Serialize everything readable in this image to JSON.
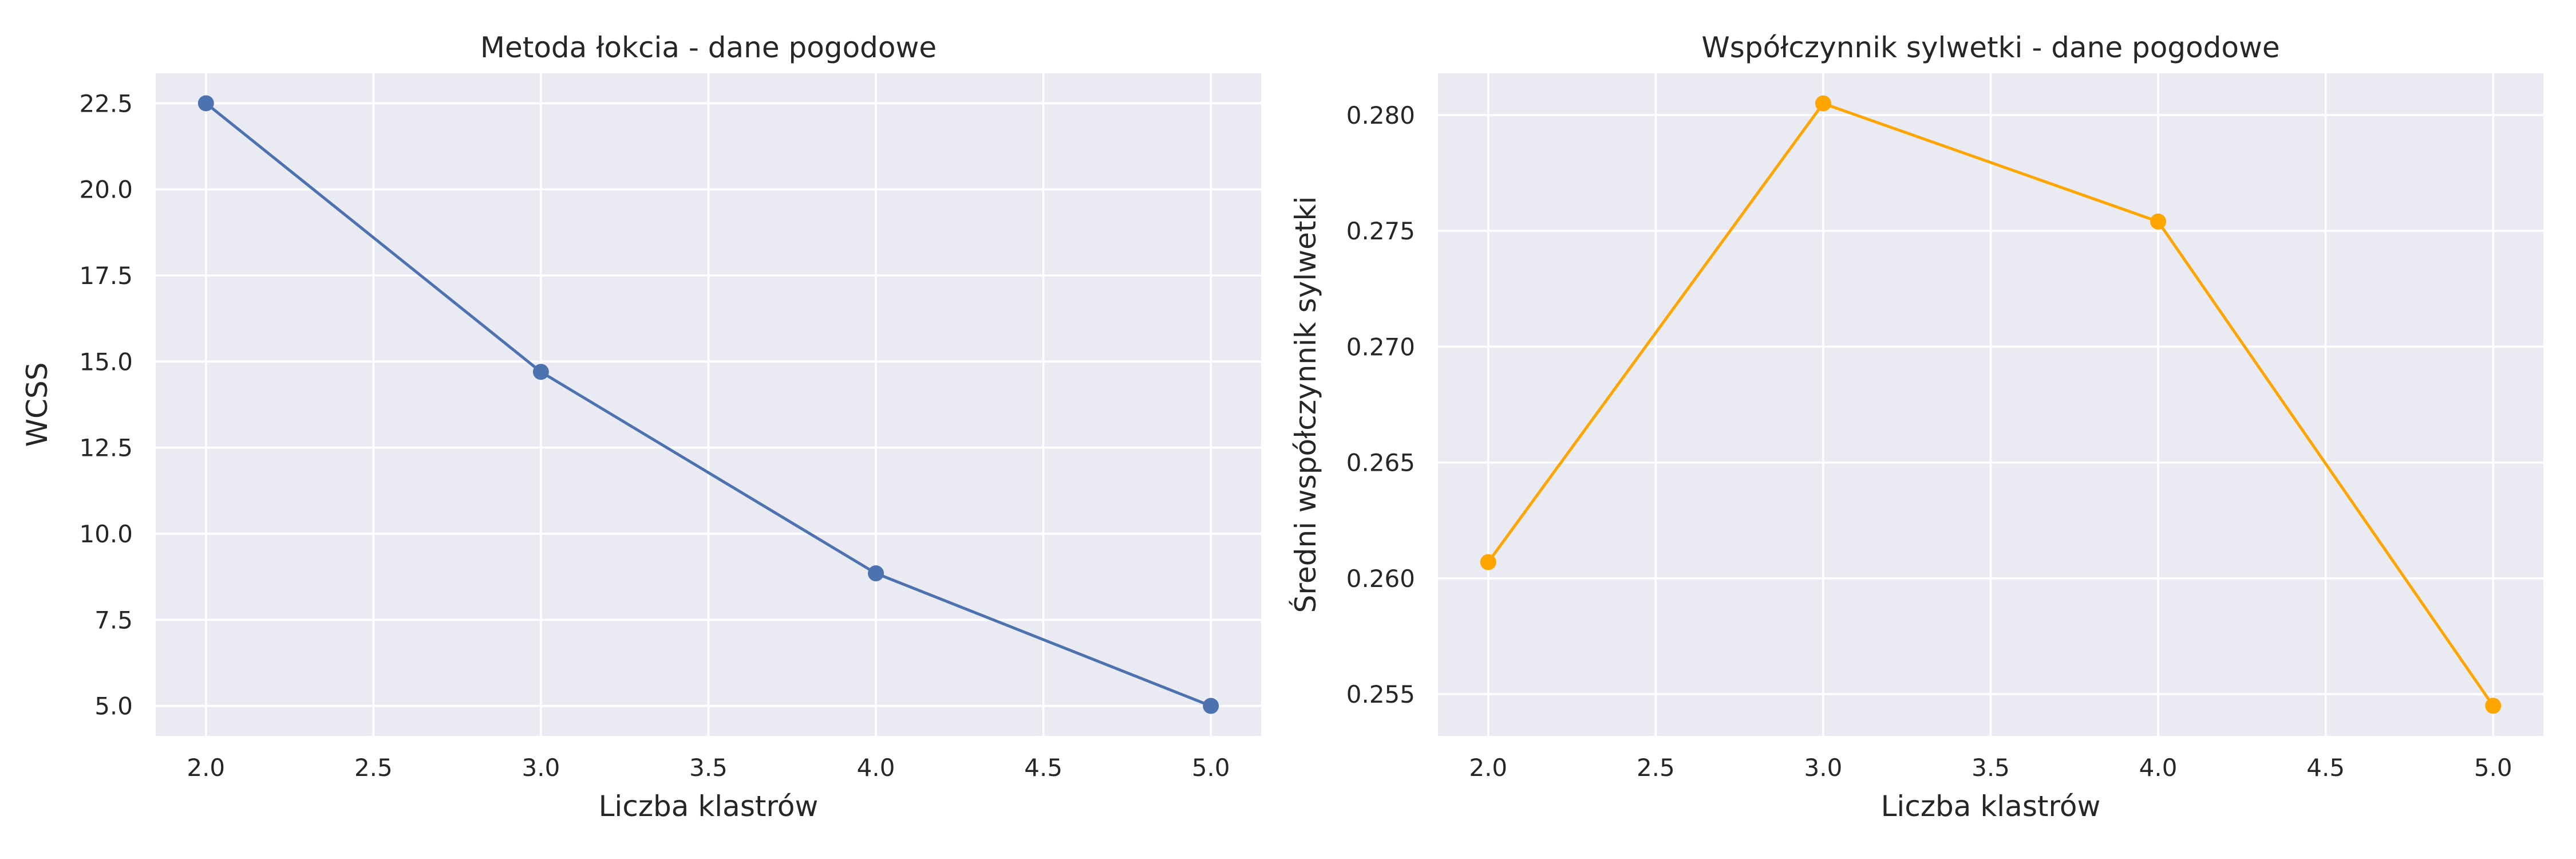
{
  "chart_data": [
    {
      "type": "line",
      "title": "Metoda łokcia - dane pogodowe",
      "xlabel": "Liczba klastrów",
      "ylabel": "WCSS",
      "x": [
        2,
        3,
        4,
        5
      ],
      "series": [
        {
          "values": [
            22.5,
            14.7,
            8.85,
            5.0
          ],
          "color": "#4c72b0"
        }
      ],
      "xlim": [
        1.85,
        5.15
      ],
      "ylim": [
        4.13,
        23.37
      ],
      "xticks": [
        2.0,
        2.5,
        3.0,
        3.5,
        4.0,
        4.5,
        5.0
      ],
      "yticks": [
        5.0,
        7.5,
        10.0,
        12.5,
        15.0,
        17.5,
        20.0,
        22.5
      ],
      "tick_decimals": {
        "x": 1,
        "y": 1
      },
      "grid": true,
      "marker": "circle",
      "background": "#eaeaf2",
      "grid_color": "#ffffff"
    },
    {
      "type": "line",
      "title": "Współczynnik sylwetki - dane pogodowe",
      "xlabel": "Liczba klastrów",
      "ylabel": "Średni współczynnik sylwetki",
      "x": [
        2,
        3,
        4,
        5
      ],
      "series": [
        {
          "values": [
            0.2607,
            0.2805,
            0.2754,
            0.2545
          ],
          "color": "#ffa500"
        }
      ],
      "xlim": [
        1.85,
        5.15
      ],
      "ylim": [
        0.2532,
        0.2818
      ],
      "xticks": [
        2.0,
        2.5,
        3.0,
        3.5,
        4.0,
        4.5,
        5.0
      ],
      "yticks": [
        0.255,
        0.26,
        0.265,
        0.27,
        0.275,
        0.28
      ],
      "tick_decimals": {
        "x": 1,
        "y": 3
      },
      "grid": true,
      "marker": "circle",
      "background": "#eaeaf2",
      "grid_color": "#ffffff"
    }
  ]
}
